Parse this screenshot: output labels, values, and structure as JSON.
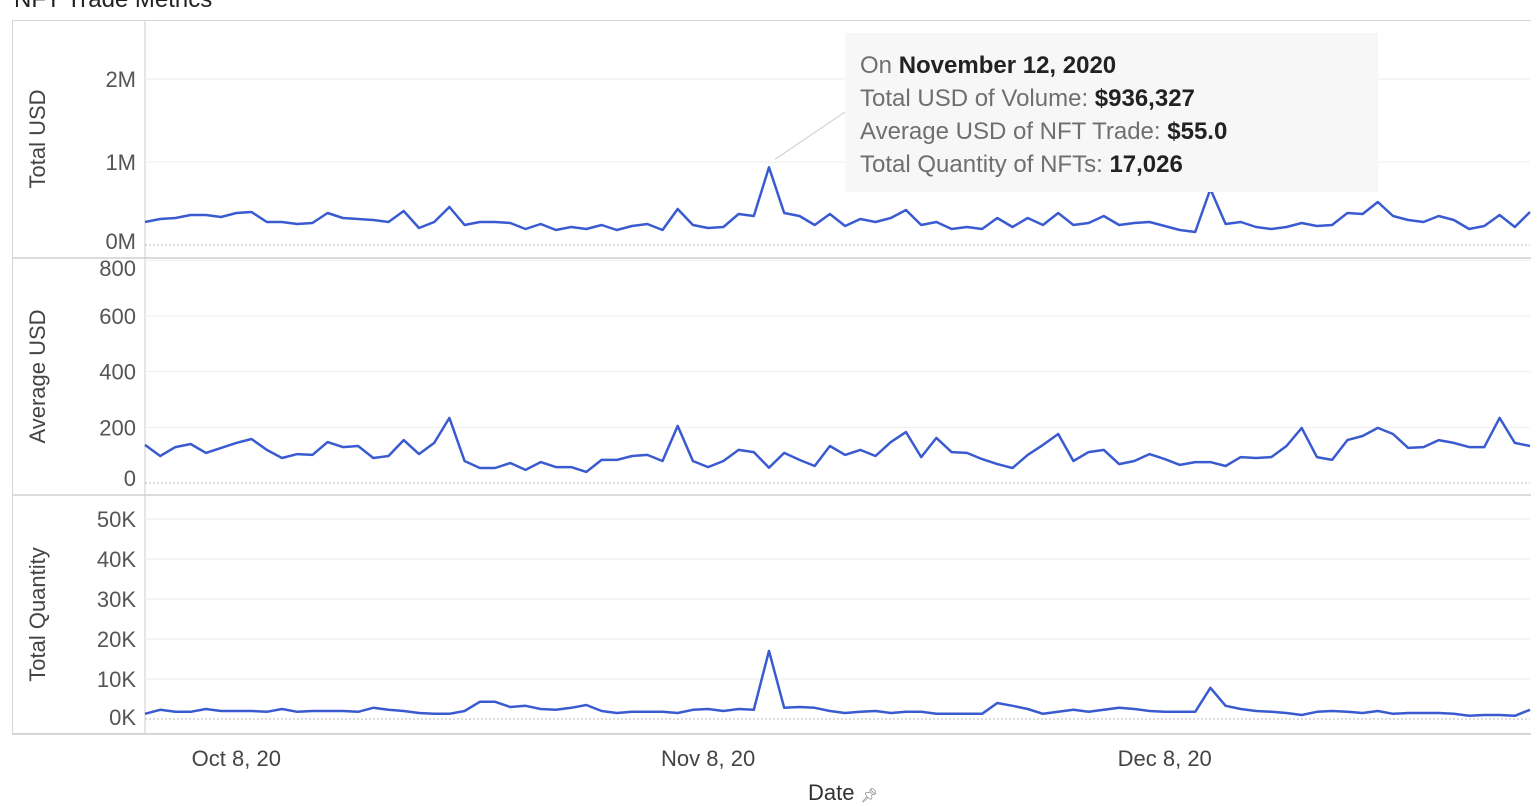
{
  "chart_data": {
    "type": "line",
    "title": "NFT Trade Metrics",
    "xlabel": "Date",
    "xlabel_icon": "pin-icon",
    "line_color": "#3a5bd0",
    "grid": true,
    "x_ticks": [
      {
        "date": "2020-10-08",
        "label": "Oct 8, 20"
      },
      {
        "date": "2020-11-08",
        "label": "Nov 8, 20"
      },
      {
        "date": "2020-12-08",
        "label": "Dec 8, 20"
      }
    ],
    "x": [
      "2020-10-02",
      "2020-10-03",
      "2020-10-04",
      "2020-10-05",
      "2020-10-06",
      "2020-10-07",
      "2020-10-08",
      "2020-10-09",
      "2020-10-10",
      "2020-10-11",
      "2020-10-12",
      "2020-10-13",
      "2020-10-14",
      "2020-10-15",
      "2020-10-16",
      "2020-10-17",
      "2020-10-18",
      "2020-10-19",
      "2020-10-20",
      "2020-10-21",
      "2020-10-22",
      "2020-10-23",
      "2020-10-24",
      "2020-10-25",
      "2020-10-26",
      "2020-10-27",
      "2020-10-28",
      "2020-10-29",
      "2020-10-30",
      "2020-10-31",
      "2020-11-01",
      "2020-11-02",
      "2020-11-03",
      "2020-11-04",
      "2020-11-05",
      "2020-11-06",
      "2020-11-07",
      "2020-11-08",
      "2020-11-09",
      "2020-11-10",
      "2020-11-11",
      "2020-11-12",
      "2020-11-13",
      "2020-11-14",
      "2020-11-15",
      "2020-11-16",
      "2020-11-17",
      "2020-11-18",
      "2020-11-19",
      "2020-11-20",
      "2020-11-21",
      "2020-11-22",
      "2020-11-23",
      "2020-11-24",
      "2020-11-25",
      "2020-11-26",
      "2020-11-27",
      "2020-11-28",
      "2020-11-29",
      "2020-11-30",
      "2020-12-01",
      "2020-12-02",
      "2020-12-03",
      "2020-12-04",
      "2020-12-05",
      "2020-12-06",
      "2020-12-07",
      "2020-12-08",
      "2020-12-09",
      "2020-12-10",
      "2020-12-11",
      "2020-12-12",
      "2020-12-13",
      "2020-12-14",
      "2020-12-15",
      "2020-12-16",
      "2020-12-17",
      "2020-12-18",
      "2020-12-19",
      "2020-12-20",
      "2020-12-21",
      "2020-12-22",
      "2020-12-23",
      "2020-12-24",
      "2020-12-25",
      "2020-12-26",
      "2020-12-27",
      "2020-12-28",
      "2020-12-29",
      "2020-12-30",
      "2020-12-31",
      "2021-01-01"
    ],
    "panels": [
      {
        "ylabel": "Total USD",
        "ylim": [
          0,
          2450000
        ],
        "yticks": [
          {
            "value": 0,
            "label": "0M"
          },
          {
            "value": 1000000,
            "label": "1M"
          },
          {
            "value": 2000000,
            "label": "2M"
          }
        ],
        "values": [
          277000,
          313000,
          325000,
          361000,
          361000,
          337000,
          386000,
          398000,
          277000,
          277000,
          253000,
          265000,
          386000,
          325000,
          313000,
          301000,
          277000,
          410000,
          205000,
          277000,
          458000,
          241000,
          277000,
          277000,
          265000,
          193000,
          253000,
          181000,
          217000,
          193000,
          241000,
          181000,
          229000,
          253000,
          181000,
          434000,
          241000,
          205000,
          217000,
          373000,
          349000,
          936327,
          386000,
          349000,
          241000,
          373000,
          229000,
          313000,
          277000,
          325000,
          422000,
          241000,
          277000,
          193000,
          217000,
          193000,
          325000,
          217000,
          325000,
          241000,
          386000,
          241000,
          265000,
          349000,
          241000,
          265000,
          277000,
          229000,
          181000,
          157000,
          675000,
          253000,
          277000,
          217000,
          193000,
          217000,
          265000,
          229000,
          241000,
          386000,
          373000,
          518000,
          349000,
          301000,
          277000,
          349000,
          301000,
          193000,
          229000,
          361000,
          217000,
          398000
        ]
      },
      {
        "ylabel": "Average USD",
        "ylim": [
          0,
          800
        ],
        "yticks": [
          {
            "value": 0,
            "label": "0"
          },
          {
            "value": 200,
            "label": "200"
          },
          {
            "value": 400,
            "label": "400"
          },
          {
            "value": 600,
            "label": "600"
          },
          {
            "value": 800,
            "label": "800"
          }
        ],
        "values": [
          137,
          97,
          129,
          140,
          108,
          126,
          144,
          158,
          119,
          90,
          104,
          101,
          147,
          129,
          133,
          90,
          97,
          154,
          104,
          144,
          234,
          79,
          54,
          54,
          72,
          47,
          75,
          57,
          57,
          40,
          83,
          83,
          97,
          101,
          79,
          205,
          79,
          57,
          79,
          119,
          111,
          55,
          108,
          83,
          61,
          133,
          101,
          119,
          97,
          147,
          183,
          93,
          162,
          111,
          108,
          86,
          68,
          54,
          101,
          137,
          176,
          79,
          111,
          119,
          68,
          79,
          104,
          86,
          65,
          75,
          75,
          61,
          93,
          90,
          93,
          133,
          198,
          93,
          83,
          154,
          169,
          198,
          176,
          126,
          129,
          154,
          144,
          129,
          129,
          234,
          144,
          133
        ]
      },
      {
        "ylabel": "Total Quantity",
        "ylim": [
          0,
          54000
        ],
        "yticks": [
          {
            "value": 0,
            "label": "0K"
          },
          {
            "value": 10000,
            "label": "10K"
          },
          {
            "value": 20000,
            "label": "20K"
          },
          {
            "value": 30000,
            "label": "30K"
          },
          {
            "value": 40000,
            "label": "40K"
          },
          {
            "value": 50000,
            "label": "50K"
          }
        ],
        "values": [
          1300,
          2300,
          1800,
          1800,
          2500,
          2000,
          2000,
          2000,
          1800,
          2500,
          1800,
          2000,
          2000,
          2000,
          1800,
          2800,
          2300,
          2000,
          1500,
          1300,
          1300,
          2000,
          4300,
          4300,
          3000,
          3300,
          2500,
          2300,
          2800,
          3500,
          2000,
          1500,
          1800,
          1800,
          1800,
          1500,
          2300,
          2500,
          2000,
          2500,
          2300,
          17026,
          2800,
          3000,
          2800,
          2000,
          1500,
          1800,
          2000,
          1500,
          1800,
          1800,
          1300,
          1300,
          1300,
          1300,
          4000,
          3300,
          2500,
          1300,
          1800,
          2300,
          1800,
          2300,
          2800,
          2500,
          2000,
          1800,
          1800,
          1800,
          7800,
          3300,
          2500,
          2000,
          1800,
          1500,
          1000,
          1800,
          2000,
          1800,
          1500,
          2000,
          1300,
          1500,
          1500,
          1500,
          1300,
          800,
          1000,
          1000,
          800,
          2300
        ]
      }
    ],
    "tooltip": {
      "date_label": "On",
      "date": "November 12, 2020",
      "lines": [
        {
          "label": "Total USD of Volume:",
          "value": "$936,327"
        },
        {
          "label": "Average USD of NFT Trade:",
          "value": "$55.0"
        },
        {
          "label": "Total Quantity of NFTs:",
          "value": "17,026"
        }
      ]
    }
  }
}
